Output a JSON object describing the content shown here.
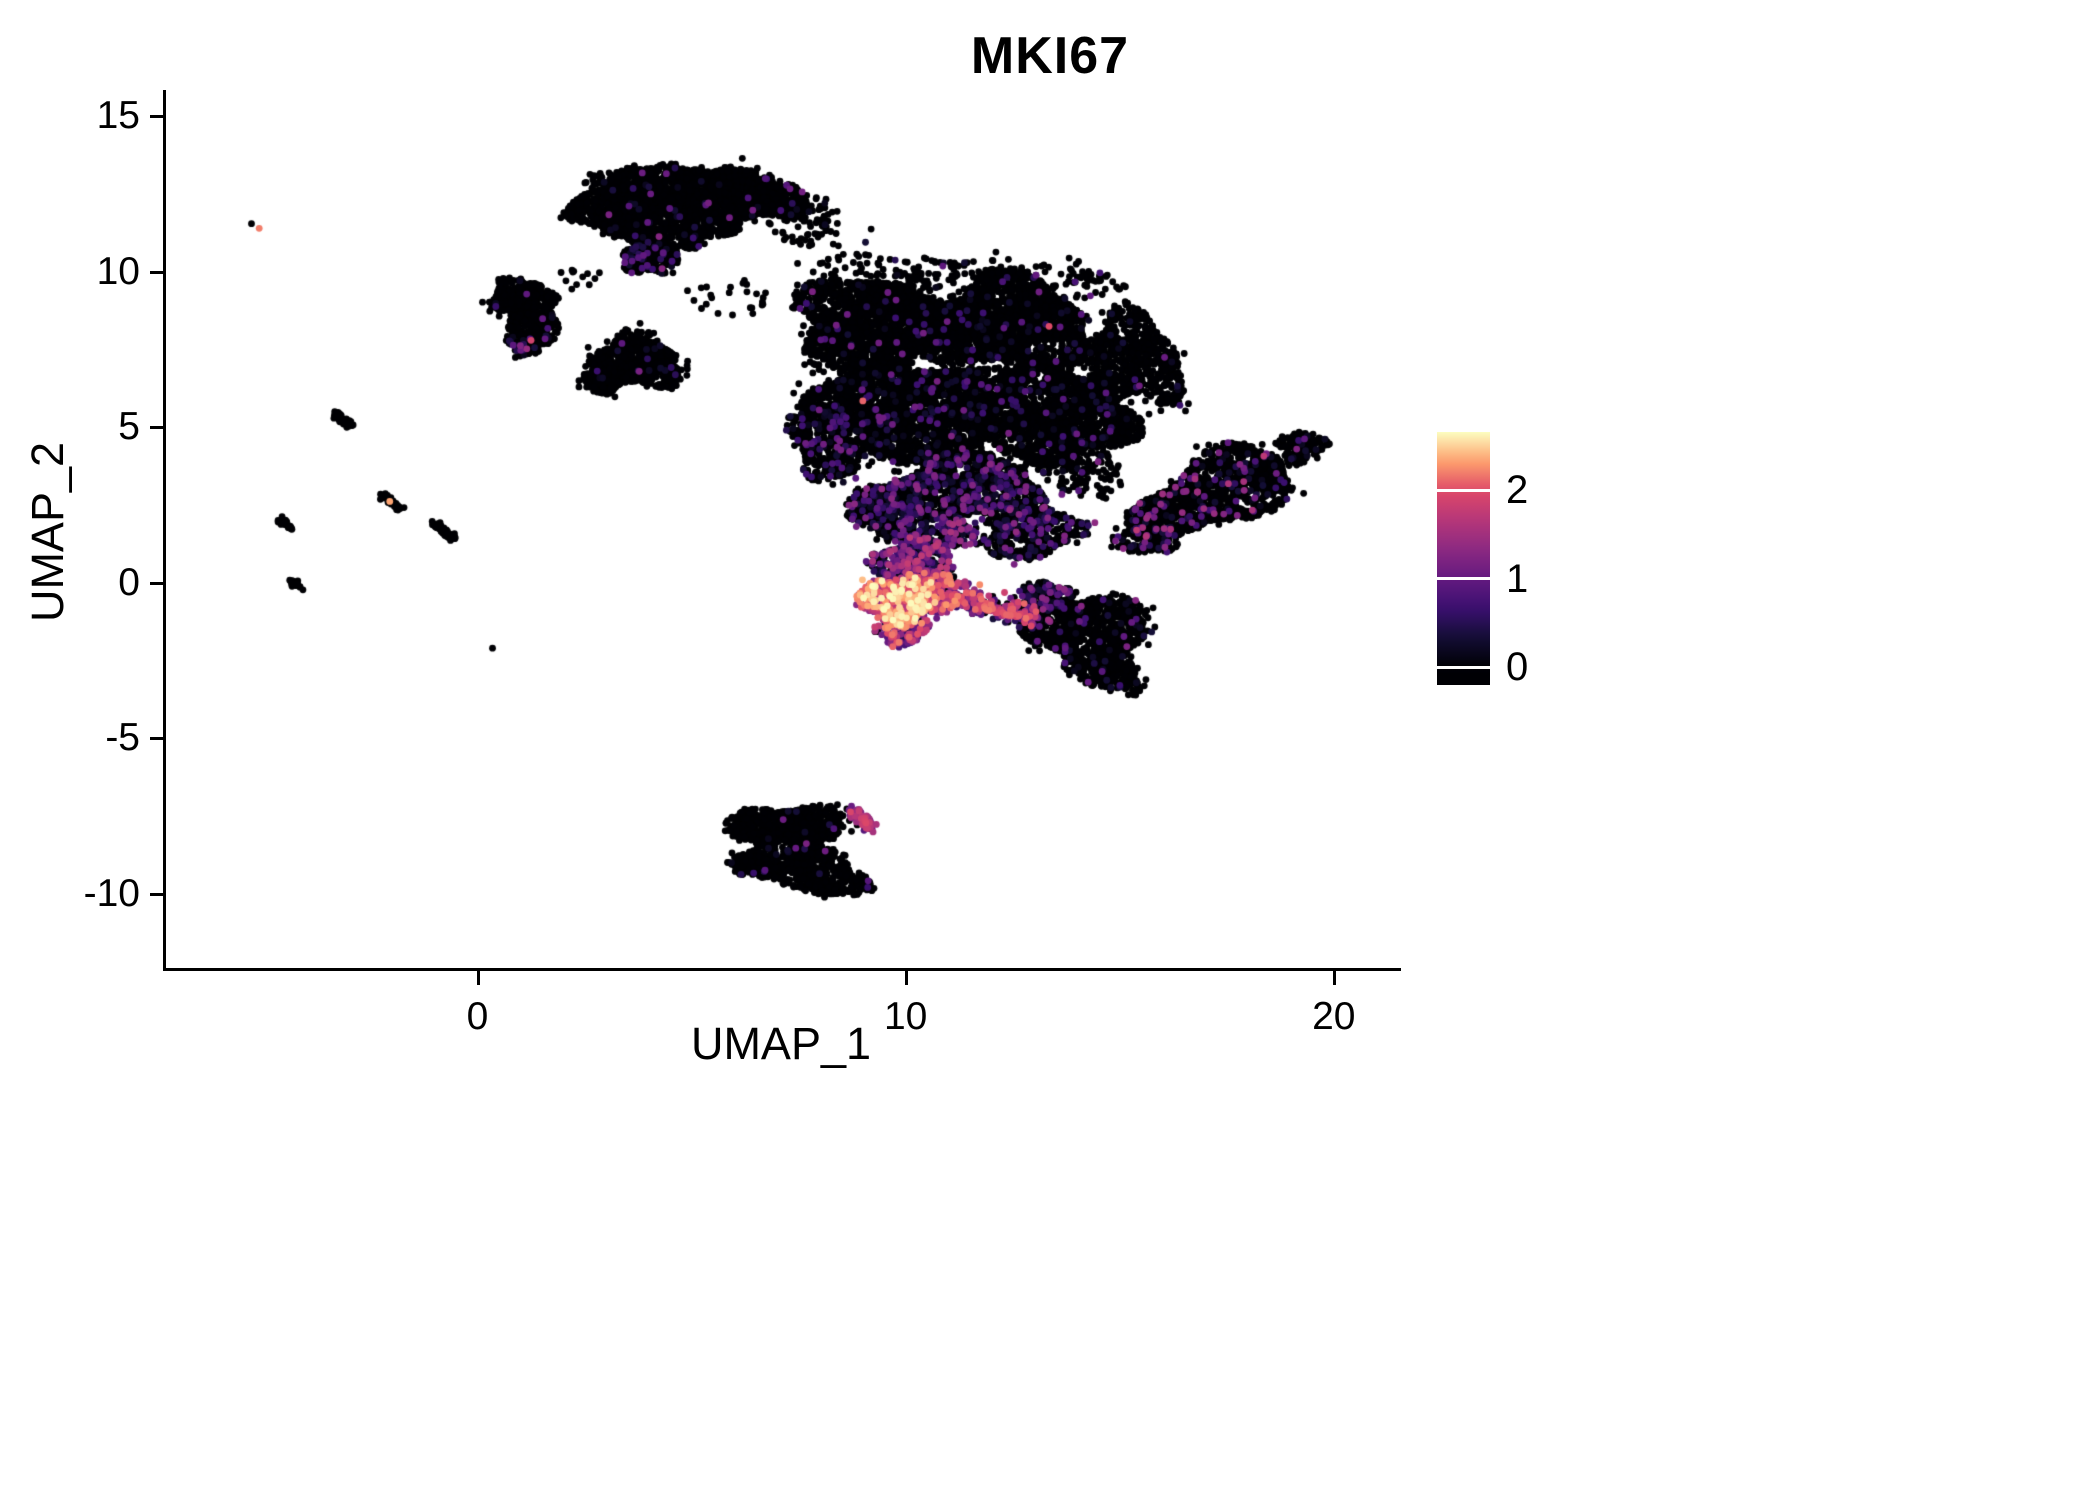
{
  "chart_data": {
    "type": "scatter",
    "title": "MKI67",
    "xlabel": "UMAP_1",
    "ylabel": "UMAP_2",
    "xlim": [
      -7.3,
      21.5
    ],
    "ylim": [
      -12.45,
      15.85
    ],
    "xticks": [
      0,
      10,
      20
    ],
    "yticks": [
      15,
      10,
      5,
      0,
      -5,
      -10
    ],
    "grid": false,
    "legend_position": "right",
    "point_radius_px": 3.4,
    "colorbar": {
      "label_values": [
        "2",
        "1",
        "0"
      ],
      "ticks": [
        2,
        1,
        0
      ],
      "vmin": 0,
      "vmax": 2.66,
      "palette": "magma",
      "stops": [
        {
          "t": 0.0,
          "color": "#000004"
        },
        {
          "t": 0.13,
          "color": "#140e36"
        },
        {
          "t": 0.25,
          "color": "#3b0f70"
        },
        {
          "t": 0.38,
          "color": "#641a80"
        },
        {
          "t": 0.5,
          "color": "#8c2981"
        },
        {
          "t": 0.63,
          "color": "#b73779"
        },
        {
          "t": 0.75,
          "color": "#de4968"
        },
        {
          "t": 0.875,
          "color": "#fe9f6d"
        },
        {
          "t": 1.0,
          "color": "#fcfdbf"
        }
      ]
    },
    "clusters": [
      {
        "id": "top-a1",
        "shape": "blob",
        "cx": 4.4,
        "cy": 12.7,
        "rx": 1.5,
        "ry": 0.75,
        "n": 900,
        "frac": 0.01
      },
      {
        "id": "top-a2",
        "shape": "blob",
        "cx": 6.3,
        "cy": 12.4,
        "rx": 1.3,
        "ry": 0.8,
        "n": 800,
        "frac": 0.015
      },
      {
        "id": "top-a3",
        "shape": "blob",
        "cx": 3.2,
        "cy": 12.0,
        "rx": 1.0,
        "ry": 0.8,
        "n": 600,
        "frac": 0.02
      },
      {
        "id": "top-a4",
        "shape": "blob",
        "cx": 4.6,
        "cy": 11.4,
        "rx": 1.3,
        "ry": 0.7,
        "n": 500,
        "frac": 0.03
      },
      {
        "id": "top-a5",
        "shape": "blob",
        "cx": 4.05,
        "cy": 10.5,
        "rx": 0.65,
        "ry": 0.6,
        "n": 260,
        "frac": 0.18,
        "vmax": 1.3
      },
      {
        "id": "top-a6",
        "shape": "blob",
        "cx": 7.5,
        "cy": 11.7,
        "rx": 0.9,
        "ry": 0.7,
        "n": 70,
        "frac": 0.02
      },
      {
        "id": "left-b1",
        "shape": "blob",
        "cx": 1.0,
        "cy": 9.2,
        "rx": 0.75,
        "ry": 0.55,
        "n": 320,
        "frac": 0.01
      },
      {
        "id": "left-b2",
        "shape": "blob",
        "cx": 1.35,
        "cy": 8.3,
        "rx": 0.6,
        "ry": 0.55,
        "n": 220,
        "frac": 0.04
      },
      {
        "id": "left-b3",
        "shape": "blob",
        "cx": 1.15,
        "cy": 7.7,
        "rx": 0.45,
        "ry": 0.35,
        "n": 110,
        "frac": 0.15,
        "vmax": 1.5
      },
      {
        "id": "mid-c1",
        "shape": "blob",
        "cx": 3.7,
        "cy": 7.1,
        "rx": 1.05,
        "ry": 0.85,
        "rot": -15,
        "n": 650,
        "frac": 0.02
      },
      {
        "id": "mid-c2",
        "shape": "blob",
        "cx": 2.9,
        "cy": 6.5,
        "rx": 0.5,
        "ry": 0.4,
        "n": 130,
        "frac": 0.02
      },
      {
        "id": "main-d1",
        "shape": "blob",
        "cx": 9.3,
        "cy": 8.3,
        "rx": 1.9,
        "ry": 1.5,
        "n": 2000,
        "frac": 0.02
      },
      {
        "id": "main-d2",
        "shape": "blob",
        "cx": 12.3,
        "cy": 8.3,
        "rx": 2.0,
        "ry": 1.5,
        "n": 2000,
        "frac": 0.03
      },
      {
        "id": "main-d3",
        "shape": "blob",
        "cx": 10.3,
        "cy": 5.6,
        "rx": 2.3,
        "ry": 1.5,
        "n": 2400,
        "frac": 0.06
      },
      {
        "id": "main-d4",
        "shape": "blob",
        "cx": 13.6,
        "cy": 5.3,
        "rx": 1.6,
        "ry": 1.5,
        "n": 1500,
        "frac": 0.05
      },
      {
        "id": "main-d5",
        "shape": "blob",
        "cx": 15.3,
        "cy": 7.2,
        "rx": 1.1,
        "ry": 1.5,
        "rot": 20,
        "n": 700,
        "frac": 0.04
      },
      {
        "id": "main-d6",
        "shape": "blob",
        "cx": 8.3,
        "cy": 4.6,
        "rx": 1.0,
        "ry": 1.2,
        "n": 600,
        "frac": 0.12
      },
      {
        "id": "main-d7",
        "shape": "blob",
        "cx": 11.4,
        "cy": 3.1,
        "rx": 1.7,
        "ry": 1.1,
        "n": 1100,
        "frac": 0.22,
        "vmax": 1.3
      },
      {
        "id": "main-d8",
        "shape": "blob",
        "cx": 9.6,
        "cy": 2.4,
        "rx": 0.9,
        "ry": 0.9,
        "n": 450,
        "frac": 0.3,
        "vmax": 1.4
      },
      {
        "id": "main-d9",
        "shape": "blob",
        "cx": 12.9,
        "cy": 1.7,
        "rx": 1.1,
        "ry": 0.9,
        "n": 450,
        "frac": 0.25,
        "vmax": 1.4
      },
      {
        "id": "main-d10",
        "shape": "blob",
        "cx": 14.2,
        "cy": 3.5,
        "rx": 0.9,
        "ry": 0.8,
        "n": 120,
        "frac": 0.12
      },
      {
        "id": "main-d11",
        "shape": "blob",
        "cx": 11.0,
        "cy": 10.0,
        "rx": 2.2,
        "ry": 0.5,
        "n": 100,
        "frac": 0.03
      },
      {
        "id": "main-d12",
        "shape": "blob",
        "cx": 14.2,
        "cy": 9.6,
        "rx": 0.8,
        "ry": 0.5,
        "n": 50,
        "frac": 0.04
      },
      {
        "id": "right-e1",
        "shape": "blob",
        "cx": 17.2,
        "cy": 2.9,
        "rx": 2.1,
        "ry": 1.05,
        "rot": 33,
        "n": 1300,
        "frac": 0.11,
        "vmax": 1.8,
        "pw": 1.8
      },
      {
        "id": "right-e2",
        "shape": "blob",
        "cx": 19.25,
        "cy": 4.35,
        "rx": 0.55,
        "ry": 0.5,
        "n": 140,
        "frac": 0.12,
        "vmax": 1.6
      },
      {
        "id": "right-e3",
        "shape": "blob",
        "cx": 15.6,
        "cy": 1.45,
        "rx": 0.7,
        "ry": 0.55,
        "n": 150,
        "frac": 0.18,
        "vmax": 1.5
      },
      {
        "id": "hot-f1",
        "shape": "blob",
        "cx": 9.8,
        "cy": -0.55,
        "rx": 0.85,
        "ry": 0.75,
        "n": 550,
        "frac": 0.97,
        "vmin": 0.9,
        "vmax": 2.66,
        "pw": 0.85
      },
      {
        "id": "hot-f2",
        "shape": "blob",
        "cx": 10.7,
        "cy": -0.3,
        "rx": 0.75,
        "ry": 0.7,
        "n": 350,
        "frac": 0.9,
        "vmin": 0.5,
        "vmax": 2.3,
        "pw": 1
      },
      {
        "id": "hot-f3",
        "shape": "blob",
        "cx": 10.2,
        "cy": 0.7,
        "rx": 1.0,
        "ry": 0.7,
        "n": 300,
        "frac": 0.75,
        "vmin": 0.2,
        "vmax": 1.8,
        "pw": 1.3
      },
      {
        "id": "hot-f5",
        "shape": "blob",
        "cx": 9.9,
        "cy": -1.55,
        "rx": 0.6,
        "ry": 0.45,
        "n": 130,
        "frac": 0.85,
        "vmin": 0.4,
        "vmax": 2.3,
        "pw": 1
      },
      {
        "id": "hot-f6",
        "shape": "blob",
        "cx": 10.9,
        "cy": 1.6,
        "rx": 0.8,
        "ry": 0.6,
        "n": 200,
        "frac": 0.5,
        "vmin": 0.2,
        "vmax": 1.6,
        "pw": 1.5
      },
      {
        "id": "lowright-g1",
        "shape": "blob",
        "cx": 14.2,
        "cy": -1.5,
        "rx": 1.5,
        "ry": 1.15,
        "rot": -15,
        "n": 1000,
        "frac": 0.05,
        "vmax": 1.3
      },
      {
        "id": "lowright-g2",
        "shape": "blob",
        "cx": 13.25,
        "cy": -0.45,
        "rx": 0.6,
        "ry": 0.5,
        "n": 180,
        "frac": 0.3,
        "vmax": 1.4
      },
      {
        "id": "lowright-g3",
        "shape": "blob",
        "cx": 14.7,
        "cy": -2.9,
        "rx": 0.9,
        "ry": 0.55,
        "rot": -20,
        "n": 220,
        "frac": 0.04
      },
      {
        "id": "bottom-h1",
        "shape": "blob",
        "cx": 7.2,
        "cy": -7.9,
        "rx": 1.35,
        "ry": 0.75,
        "n": 700,
        "frac": 0.02
      },
      {
        "id": "bottom-h2",
        "shape": "blob",
        "cx": 8.0,
        "cy": -9.3,
        "rx": 1.1,
        "ry": 0.75,
        "rot": -25,
        "n": 450,
        "frac": 0.01
      },
      {
        "id": "bottom-h3",
        "shape": "blob",
        "cx": 6.5,
        "cy": -9.0,
        "rx": 0.6,
        "ry": 0.5,
        "n": 150,
        "frac": 0.01
      },
      {
        "id": "bridge-1",
        "shape": "blob",
        "cx": 2.2,
        "cy": 9.8,
        "rx": 0.6,
        "ry": 0.4,
        "n": 12
      },
      {
        "id": "bridge-2",
        "shape": "blob",
        "cx": 8.6,
        "cy": 10.8,
        "rx": 1.3,
        "ry": 0.8,
        "n": 35,
        "frac": 0.03
      },
      {
        "id": "bridge-3",
        "shape": "blob",
        "cx": 5.9,
        "cy": 9.1,
        "rx": 1.0,
        "ry": 0.6,
        "n": 25
      },
      {
        "id": "streak-1",
        "shape": "line",
        "x1": -3.35,
        "y1": 5.45,
        "x2": -2.95,
        "y2": 5.05,
        "w": 0.05,
        "n": 45
      },
      {
        "id": "streak-2",
        "shape": "line",
        "x1": -2.15,
        "y1": 2.75,
        "x2": -1.8,
        "y2": 2.35,
        "w": 0.05,
        "n": 40
      },
      {
        "id": "streak-3",
        "shape": "line",
        "x1": -4.6,
        "y1": 2.05,
        "x2": -4.35,
        "y2": 1.75,
        "w": 0.04,
        "n": 30
      },
      {
        "id": "streak-4",
        "shape": "line",
        "x1": -1.1,
        "y1": 1.95,
        "x2": -0.55,
        "y2": 1.45,
        "w": 0.05,
        "n": 50
      },
      {
        "id": "streak-5",
        "shape": "line",
        "x1": -4.35,
        "y1": 0.05,
        "x2": -4.15,
        "y2": -0.15,
        "w": 0.04,
        "n": 22
      },
      {
        "id": "hot-trail",
        "shape": "line",
        "x1": 11.3,
        "y1": -0.6,
        "x2": 13.2,
        "y2": -1.15,
        "w": 0.16,
        "n": 220,
        "frac": 0.8,
        "vmin": 0.3,
        "vmax": 2.2,
        "pw": 1
      },
      {
        "id": "bottom-pink-streak",
        "shape": "line",
        "x1": 8.75,
        "y1": -7.3,
        "x2": 9.15,
        "y2": -7.85,
        "w": 0.09,
        "n": 70,
        "frac": 0.85,
        "vmin": 0.8,
        "vmax": 2.0,
        "pw": 1
      },
      {
        "id": "single-orange-topleft",
        "shape": "point",
        "cx": -5.1,
        "cy": 11.4,
        "v": 2.2
      },
      {
        "id": "single-black-topleft",
        "shape": "point",
        "cx": -5.28,
        "cy": 11.55,
        "v": 0
      },
      {
        "id": "single-orange-streak2",
        "shape": "point",
        "cx": -2.05,
        "cy": 2.62,
        "v": 2.35
      },
      {
        "id": "single-black-low",
        "shape": "point",
        "cx": 0.35,
        "cy": -2.1,
        "v": 0
      },
      {
        "id": "single-pink-leftcluster",
        "shape": "point",
        "cx": 1.25,
        "cy": 7.8,
        "v": 1.9
      },
      {
        "id": "single-orange-main1",
        "shape": "point",
        "cx": 13.35,
        "cy": 8.25,
        "v": 2.0
      },
      {
        "id": "single-orange-main2",
        "shape": "point",
        "cx": 9.0,
        "cy": 5.85,
        "v": 2.1
      }
    ]
  }
}
